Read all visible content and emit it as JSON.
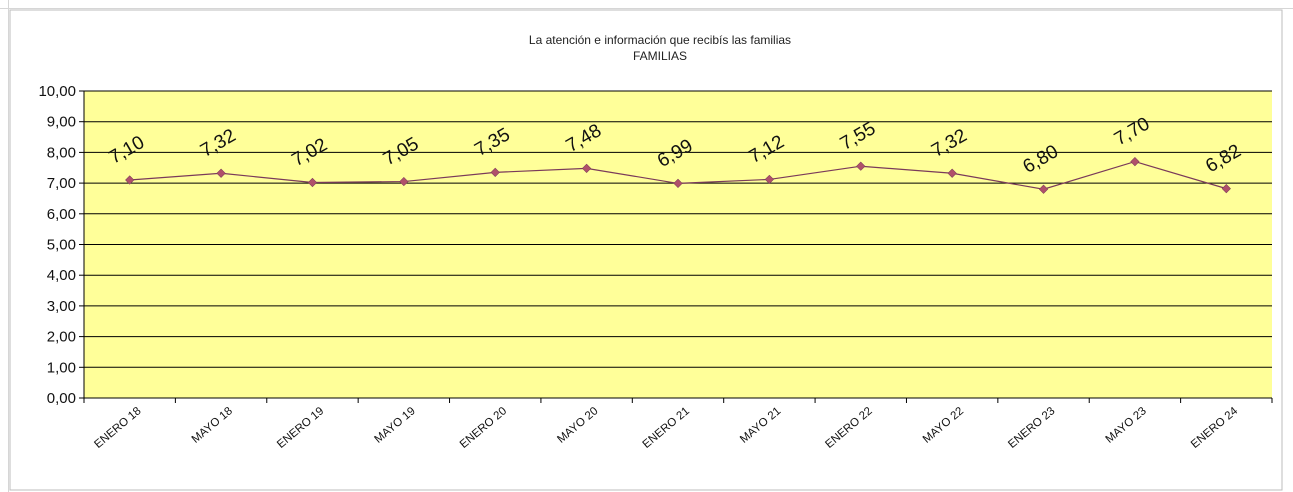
{
  "chart_data": {
    "type": "line",
    "title": "La atención e información que recibís las familias",
    "subtitle": "FAMILIAS",
    "categories": [
      "ENERO 18",
      "MAYO 18",
      "ENERO 19",
      "MAYO 19",
      "ENERO 20",
      "MAYO 20",
      "ENERO 21",
      "MAYO 21",
      "ENERO 22",
      "MAYO 22",
      "ENERO 23",
      "MAYO 23",
      "ENERO 24"
    ],
    "series": [
      {
        "values": [
          7.1,
          7.32,
          7.02,
          7.05,
          7.35,
          7.48,
          6.99,
          7.12,
          7.55,
          7.32,
          6.8,
          7.7,
          6.82
        ],
        "labels": [
          "7,10",
          "7,32",
          "7,02",
          "7,05",
          "7,35",
          "7,48",
          "6,99",
          "7,12",
          "7,55",
          "7,32",
          "6,80",
          "7,70",
          "6,82"
        ],
        "color": "#7a3a5a",
        "marker_color": "#b0506a"
      }
    ],
    "y_ticks": [
      "0,00",
      "1,00",
      "2,00",
      "3,00",
      "4,00",
      "5,00",
      "6,00",
      "7,00",
      "8,00",
      "9,00",
      "10,00"
    ],
    "ylim": [
      0,
      10
    ],
    "xlabel": "",
    "ylabel": "",
    "grid": true,
    "legend": "none",
    "plot_background": "#ffff99",
    "gridline_color": "#000000"
  }
}
